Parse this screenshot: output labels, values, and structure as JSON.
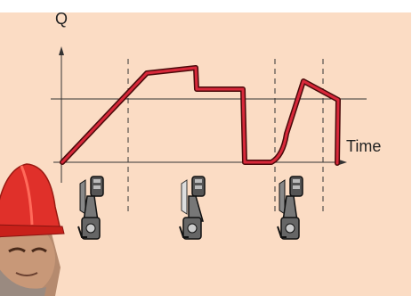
{
  "diagram": {
    "y_label": "Q",
    "x_label": "Time"
  },
  "colors": {
    "background": "#fbdcc4",
    "curve": "#d8283a",
    "curve_outline": "#4a0a0a",
    "axes": "#333333"
  },
  "icons": [
    "piston-icon",
    "piston-icon",
    "piston-icon"
  ]
}
